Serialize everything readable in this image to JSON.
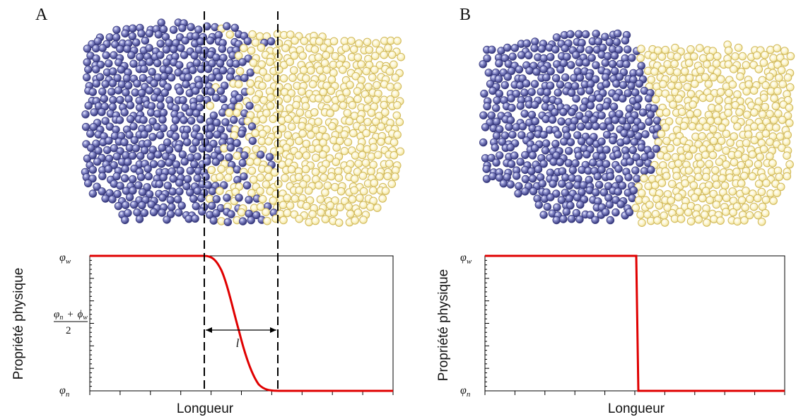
{
  "panels": [
    {
      "letter": "A",
      "y_label": "Propriété physique",
      "x_label": "Longueur",
      "y_tick_top": "φ",
      "y_tick_top_sub": "w",
      "y_tick_bottom": "φ",
      "y_tick_bottom_sub": "n",
      "y_tick_mid_num_a": "φ",
      "y_tick_mid_num_a_sub": "n",
      "y_tick_mid_num_plus": "+",
      "y_tick_mid_num_b": "ϕ",
      "y_tick_mid_num_b_sub": "w",
      "y_tick_mid_den": "2",
      "width_symbol": "l",
      "profile": "smooth",
      "left_color": "#4b4e9a",
      "right_color": "#e4cf6b"
    },
    {
      "letter": "B",
      "y_label": "Propriété physique",
      "x_label": "Longueur",
      "y_tick_top": "φ",
      "y_tick_top_sub": "w",
      "y_tick_bottom": "φ",
      "y_tick_bottom_sub": "n",
      "profile": "sharp",
      "left_color": "#4b4e9a",
      "right_color": "#e4cf6b"
    }
  ],
  "colors": {
    "curve": "#e00000",
    "axis": "#000000"
  }
}
